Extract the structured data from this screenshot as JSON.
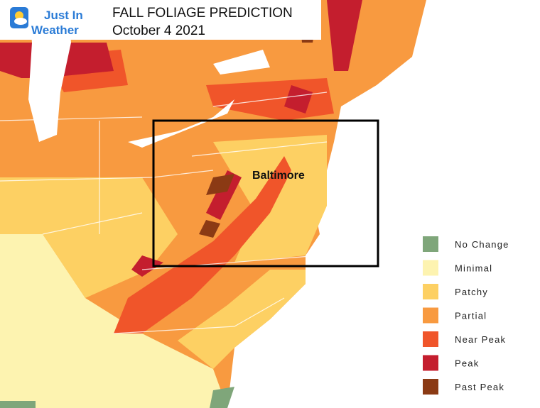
{
  "logo": {
    "line1": "Just In",
    "line2": "Weather"
  },
  "header": {
    "title": "FALL FOLIAGE PREDICTION",
    "subtitle": "October 4 2021"
  },
  "map": {
    "highlight_label": "Baltimore"
  },
  "legend": {
    "items": [
      {
        "label": "No Change",
        "color": "#7fa67a"
      },
      {
        "label": "Minimal",
        "color": "#fdf3b0"
      },
      {
        "label": "Patchy",
        "color": "#fdd063"
      },
      {
        "label": "Partial",
        "color": "#f89a40"
      },
      {
        "label": "Near Peak",
        "color": "#f0552a"
      },
      {
        "label": "Peak",
        "color": "#c41e2e"
      },
      {
        "label": "Past Peak",
        "color": "#8b3a14"
      }
    ]
  }
}
